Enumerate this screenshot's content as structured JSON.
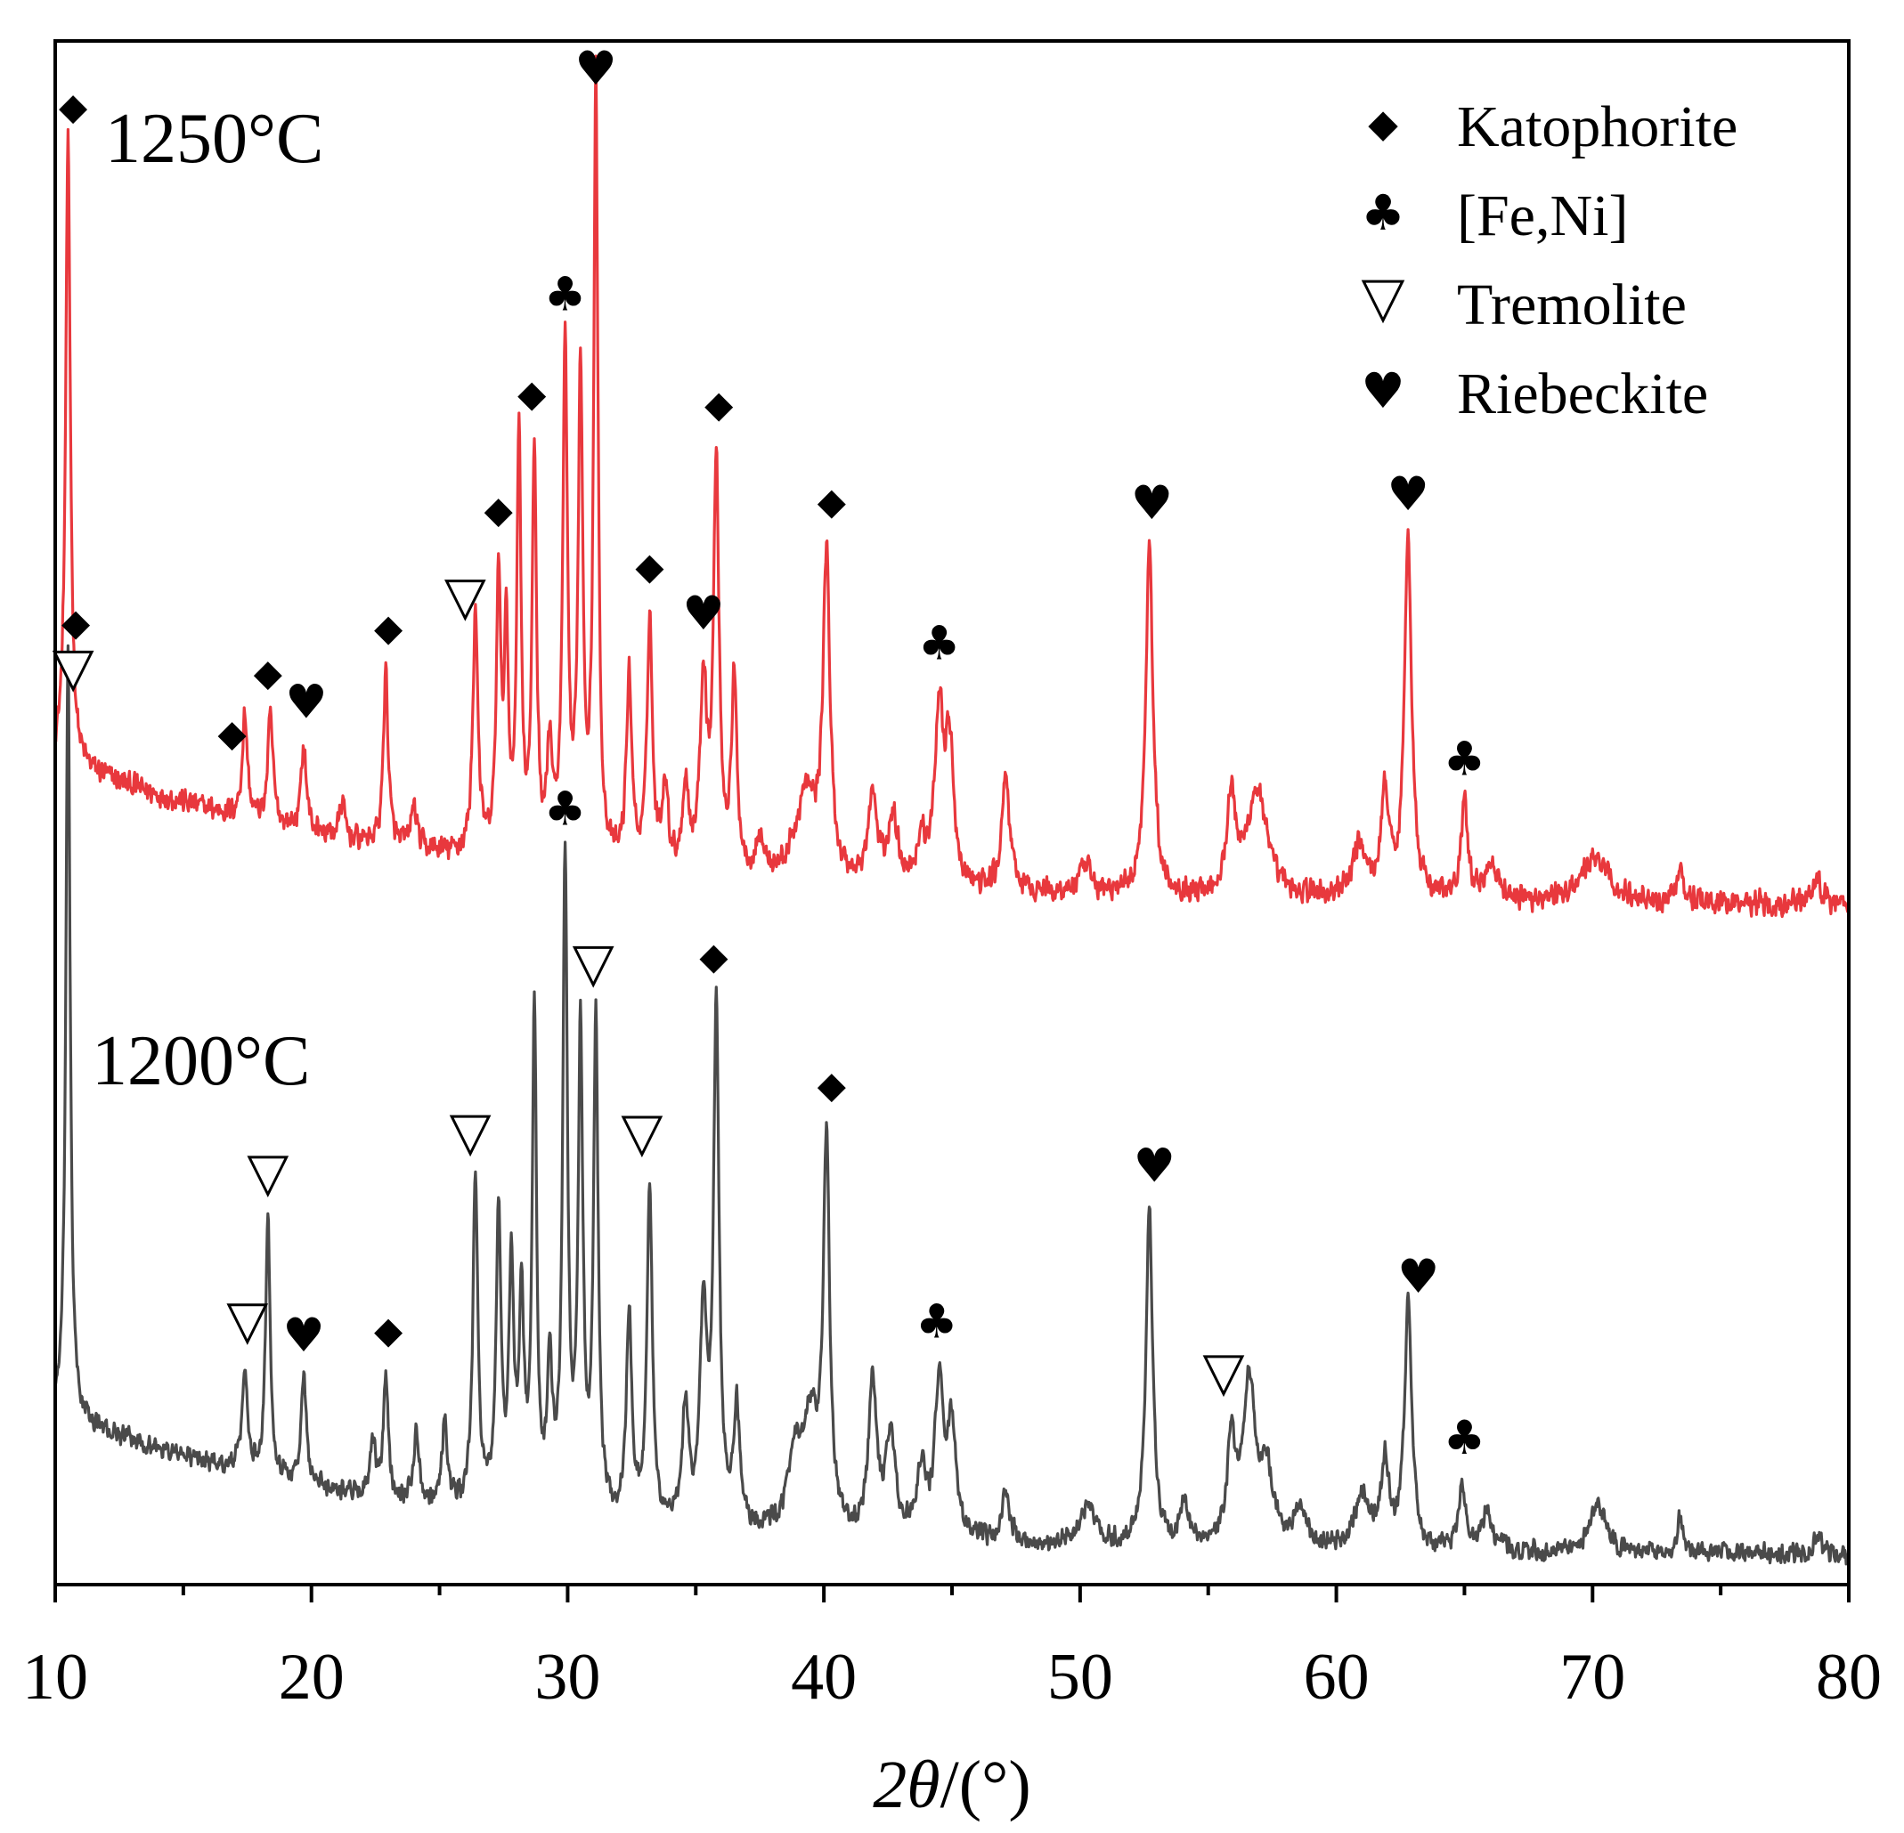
{
  "chart_data": {
    "type": "line",
    "title": "",
    "xlabel_symbol": "2θ",
    "xlabel_unit": "/(°)",
    "ylabel": "",
    "xlim": [
      10,
      80
    ],
    "x_ticks": [
      10,
      20,
      30,
      40,
      50,
      60,
      70,
      80
    ],
    "x_tick_labels": [
      "10",
      "20",
      "30",
      "40",
      "50",
      "60",
      "70",
      "80"
    ],
    "y_ticks_shown": false,
    "grid": false,
    "legend": {
      "placement": "top-right",
      "entries": [
        {
          "phase": "katophorite",
          "symbol": "♦",
          "label": "Katophorite"
        },
        {
          "phase": "feni",
          "symbol": "♣",
          "label": "[Fe,Ni]"
        },
        {
          "phase": "tremolite",
          "symbol": "▽",
          "label": "Tremolite"
        },
        {
          "phase": "riebeckite",
          "symbol": "♥",
          "label": "Riebeckite"
        }
      ]
    },
    "series": [
      {
        "name": "1250°C",
        "color": "#e8383d",
        "baseline": 0.36,
        "baseline_end": 0.02,
        "decay": 14,
        "noise": 0.035,
        "peaks": [
          [
            10.5,
            1.45,
            0.11
          ],
          [
            17.4,
            0.24,
            0.12
          ],
          [
            18.4,
            0.25,
            0.12
          ],
          [
            19.7,
            0.2,
            0.12
          ],
          [
            21.2,
            0.08,
            0.12
          ],
          [
            22.9,
            0.41,
            0.11
          ],
          [
            24.0,
            0.1,
            0.13
          ],
          [
            26.4,
            0.57,
            0.12
          ],
          [
            27.3,
            0.64,
            0.1
          ],
          [
            27.6,
            0.5,
            0.1
          ],
          [
            28.1,
            0.98,
            0.1
          ],
          [
            28.7,
            0.95,
            0.1
          ],
          [
            29.3,
            0.25,
            0.12
          ],
          [
            29.9,
            1.18,
            0.11
          ],
          [
            30.5,
            1.13,
            0.11
          ],
          [
            31.1,
            1.82,
            0.1
          ],
          [
            32.4,
            0.44,
            0.13
          ],
          [
            33.2,
            0.59,
            0.12
          ],
          [
            33.8,
            0.2,
            0.14
          ],
          [
            34.6,
            0.2,
            0.14
          ],
          [
            35.3,
            0.44,
            0.16
          ],
          [
            35.8,
            0.95,
            0.13
          ],
          [
            36.5,
            0.44,
            0.13
          ],
          [
            37.5,
            0.08,
            0.2
          ],
          [
            39.3,
            0.2,
            0.5
          ],
          [
            40.1,
            0.74,
            0.16
          ],
          [
            41.9,
            0.2,
            0.2
          ],
          [
            42.7,
            0.15,
            0.25
          ],
          [
            43.8,
            0.1,
            0.2
          ],
          [
            44.5,
            0.41,
            0.2
          ],
          [
            44.9,
            0.32,
            0.18
          ],
          [
            47.1,
            0.27,
            0.18
          ],
          [
            50.2,
            0.06,
            0.3
          ],
          [
            52.7,
            0.82,
            0.17
          ],
          [
            55.9,
            0.23,
            0.2
          ],
          [
            56.9,
            0.25,
            0.45
          ],
          [
            60.9,
            0.12,
            0.3
          ],
          [
            61.9,
            0.25,
            0.17
          ],
          [
            62.8,
            0.84,
            0.17
          ],
          [
            65.0,
            0.22,
            0.15
          ],
          [
            66.0,
            0.08,
            0.3
          ],
          [
            70.1,
            0.1,
            0.6
          ],
          [
            73.4,
            0.1,
            0.12
          ],
          [
            78.8,
            0.06,
            0.15
          ]
        ]
      },
      {
        "name": "1200°C",
        "color": "#4a4a4a",
        "baseline": 0.44,
        "baseline_end": 0.02,
        "decay": 14,
        "noise": 0.035,
        "peaks": [
          [
            10.5,
            2.25,
            0.1
          ],
          [
            17.4,
            0.3,
            0.12
          ],
          [
            18.3,
            0.76,
            0.11
          ],
          [
            19.7,
            0.31,
            0.12
          ],
          [
            22.4,
            0.15,
            0.12
          ],
          [
            22.9,
            0.36,
            0.11
          ],
          [
            24.1,
            0.2,
            0.13
          ],
          [
            25.2,
            0.25,
            0.12
          ],
          [
            26.4,
            0.96,
            0.12
          ],
          [
            27.3,
            0.88,
            0.11
          ],
          [
            27.8,
            0.72,
            0.11
          ],
          [
            28.2,
            0.6,
            0.11
          ],
          [
            28.7,
            1.47,
            0.1
          ],
          [
            29.3,
            0.4,
            0.12
          ],
          [
            29.9,
            1.9,
            0.11
          ],
          [
            30.5,
            1.4,
            0.11
          ],
          [
            31.1,
            1.45,
            0.11
          ],
          [
            32.4,
            0.6,
            0.13
          ],
          [
            33.2,
            1.0,
            0.12
          ],
          [
            34.6,
            0.35,
            0.14
          ],
          [
            35.3,
            0.63,
            0.16
          ],
          [
            35.8,
            1.5,
            0.13
          ],
          [
            36.6,
            0.35,
            0.14
          ],
          [
            38.9,
            0.22,
            0.35
          ],
          [
            39.5,
            0.3,
            0.3
          ],
          [
            40.1,
            1.13,
            0.15
          ],
          [
            41.9,
            0.45,
            0.18
          ],
          [
            42.6,
            0.3,
            0.22
          ],
          [
            43.8,
            0.2,
            0.2
          ],
          [
            44.5,
            0.46,
            0.2
          ],
          [
            45.0,
            0.32,
            0.2
          ],
          [
            47.1,
            0.14,
            0.2
          ],
          [
            50.3,
            0.12,
            0.35
          ],
          [
            52.7,
            1.0,
            0.16
          ],
          [
            54.1,
            0.12,
            0.2
          ],
          [
            55.9,
            0.3,
            0.18
          ],
          [
            56.6,
            0.47,
            0.3
          ],
          [
            57.3,
            0.2,
            0.3
          ],
          [
            58.6,
            0.12,
            0.25
          ],
          [
            61.0,
            0.15,
            0.35
          ],
          [
            61.9,
            0.25,
            0.18
          ],
          [
            62.8,
            0.73,
            0.17
          ],
          [
            64.9,
            0.2,
            0.15
          ],
          [
            65.9,
            0.12,
            0.25
          ],
          [
            70.2,
            0.15,
            0.35
          ],
          [
            73.4,
            0.1,
            0.12
          ],
          [
            78.8,
            0.06,
            0.15
          ]
        ]
      }
    ],
    "series_labels": [
      {
        "series": "1250°C",
        "text": "1250°C"
      },
      {
        "series": "1200°C",
        "text": "1200°C"
      }
    ],
    "annotations": [
      {
        "series": 0,
        "x": 10.7,
        "phase": "katophorite"
      },
      {
        "series": 0,
        "x": 16.9,
        "phase": "katophorite"
      },
      {
        "series": 0,
        "x": 18.3,
        "phase": "katophorite"
      },
      {
        "series": 0,
        "x": 19.8,
        "phase": "riebeckite"
      },
      {
        "series": 0,
        "x": 23.0,
        "phase": "katophorite"
      },
      {
        "series": 0,
        "x": 26.0,
        "phase": "tremolite"
      },
      {
        "series": 0,
        "x": 27.3,
        "phase": "katophorite"
      },
      {
        "series": 0,
        "x": 28.6,
        "phase": "katophorite"
      },
      {
        "series": 0,
        "x": 29.9,
        "phase": "feni"
      },
      {
        "series": 0,
        "x": 31.1,
        "phase": "riebeckite"
      },
      {
        "series": 0,
        "x": 33.2,
        "phase": "katophorite"
      },
      {
        "series": 0,
        "x": 35.3,
        "phase": "riebeckite"
      },
      {
        "series": 0,
        "x": 35.9,
        "phase": "katophorite"
      },
      {
        "series": 0,
        "x": 40.3,
        "phase": "katophorite"
      },
      {
        "series": 0,
        "x": 44.5,
        "phase": "feni"
      },
      {
        "series": 0,
        "x": 52.8,
        "phase": "riebeckite"
      },
      {
        "series": 0,
        "x": 62.8,
        "phase": "riebeckite"
      },
      {
        "series": 0,
        "x": 65.0,
        "phase": "feni"
      },
      {
        "series": 1,
        "x": 10.8,
        "phase": "katophorite"
      },
      {
        "series": 1,
        "x": 10.7,
        "phase": "tremolite"
      },
      {
        "series": 1,
        "x": 17.5,
        "phase": "tremolite"
      },
      {
        "series": 1,
        "x": 18.3,
        "phase": "tremolite"
      },
      {
        "series": 1,
        "x": 19.7,
        "phase": "riebeckite"
      },
      {
        "series": 1,
        "x": 23.0,
        "phase": "katophorite"
      },
      {
        "series": 1,
        "x": 26.2,
        "phase": "tremolite"
      },
      {
        "series": 1,
        "x": 29.9,
        "phase": "feni"
      },
      {
        "series": 1,
        "x": 31.0,
        "phase": "tremolite"
      },
      {
        "series": 1,
        "x": 32.9,
        "phase": "tremolite"
      },
      {
        "series": 1,
        "x": 35.7,
        "phase": "katophorite"
      },
      {
        "series": 1,
        "x": 40.3,
        "phase": "katophorite"
      },
      {
        "series": 1,
        "x": 44.4,
        "phase": "feni"
      },
      {
        "series": 1,
        "x": 52.9,
        "phase": "riebeckite"
      },
      {
        "series": 1,
        "x": 55.6,
        "phase": "tremolite"
      },
      {
        "series": 1,
        "x": 63.2,
        "phase": "riebeckite"
      },
      {
        "series": 1,
        "x": 65.0,
        "phase": "feni"
      }
    ]
  }
}
